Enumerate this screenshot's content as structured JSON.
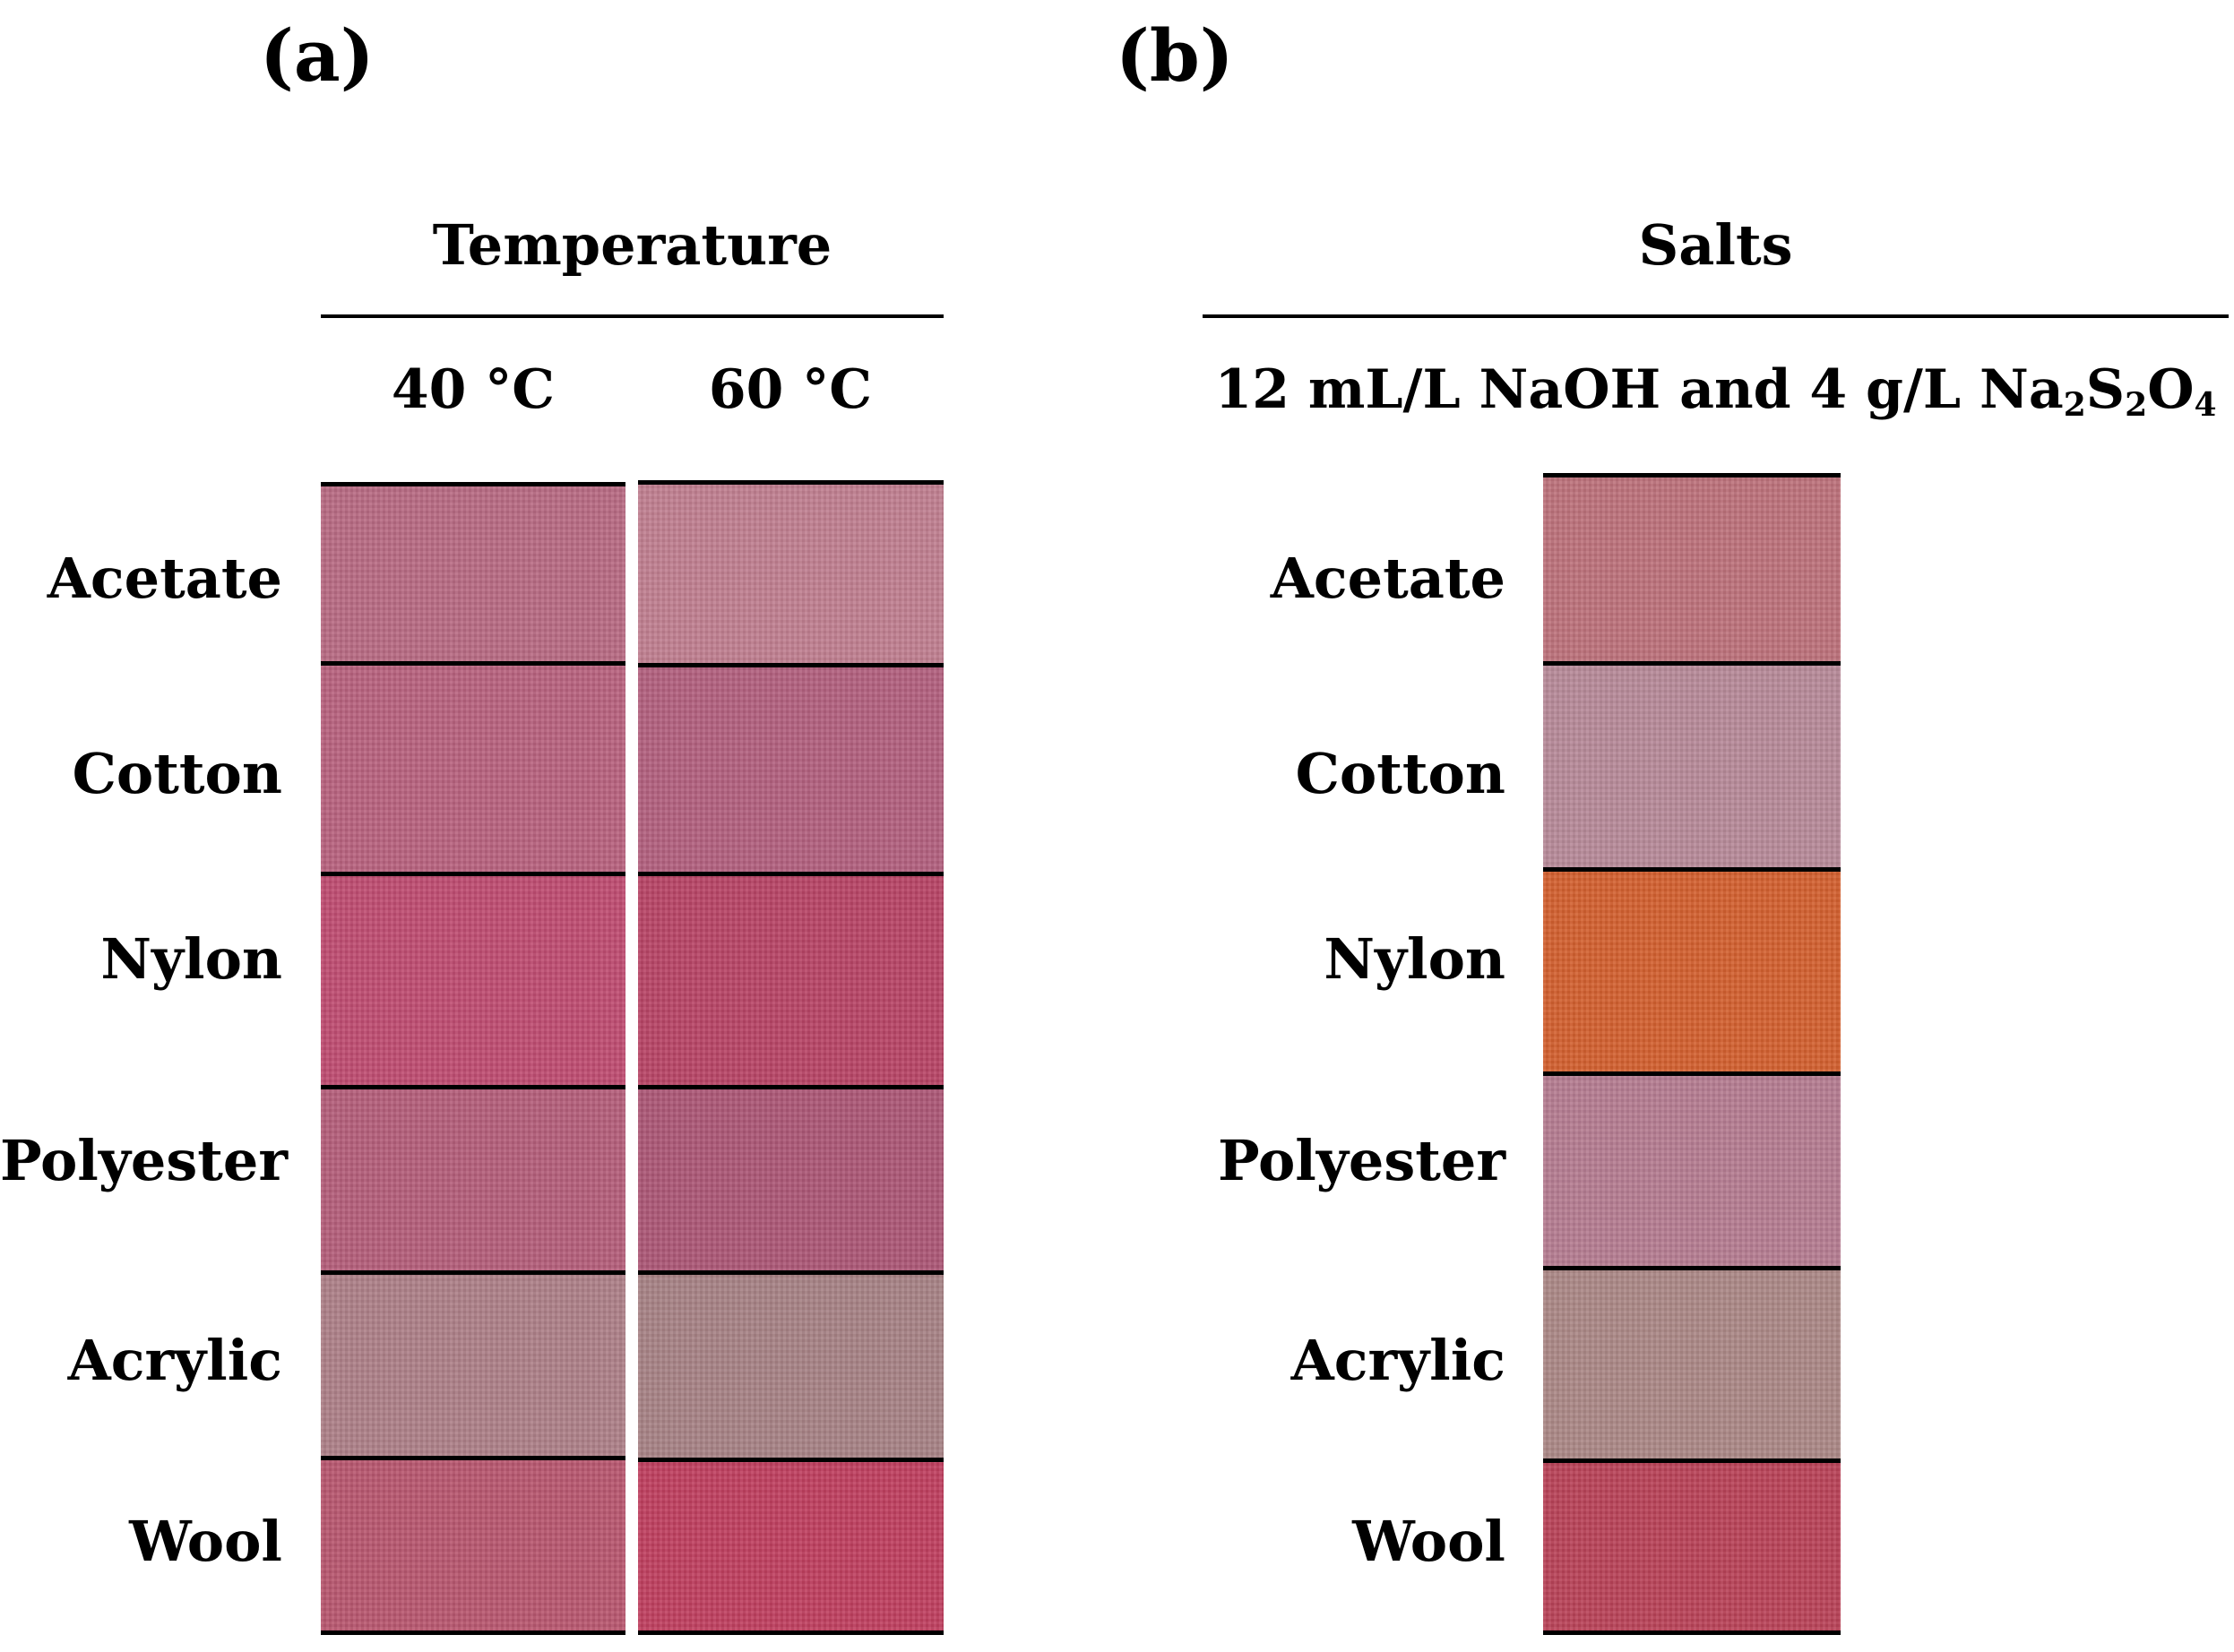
{
  "panel_a": {
    "letter": "(a)",
    "header": "Temperature",
    "columns": [
      {
        "label": "40 °C",
        "swatches": [
          "#b86a83",
          "#b8627e",
          "#bf4c71",
          "#b45e7a",
          "#ad8088",
          "#b8576f"
        ]
      },
      {
        "label": "60 °C",
        "swatches": [
          "#c07f90",
          "#b2607e",
          "#b84566",
          "#ac5776",
          "#a78285",
          "#bf3f5f"
        ]
      }
    ]
  },
  "panel_b": {
    "letter": "(b)",
    "header": "Salts",
    "condition_prefix": "12 mL/L NaOH and 4 g/L Na",
    "condition_sub1": "2",
    "condition_mid": "S",
    "condition_sub2": "2",
    "condition_mid2": "O",
    "condition_sub3": "4",
    "swatches": [
      "#bd727b",
      "#b78a99",
      "#d3602f",
      "#b57c91",
      "#ab8886",
      "#b94358"
    ]
  },
  "row_labels": [
    "Acetate",
    "Cotton",
    "Nylon",
    "Polyester",
    "Acrylic",
    "Wool"
  ]
}
